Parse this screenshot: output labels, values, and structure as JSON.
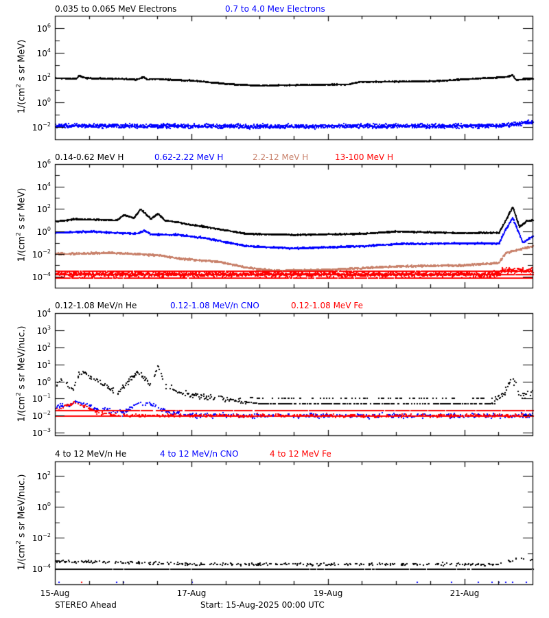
{
  "chart_data": [
    {
      "type": "scatter",
      "panel": 1,
      "title": "",
      "legend": [
        {
          "name": "0.035 to 0.065 MeV Electrons",
          "color": "#000000"
        },
        {
          "name": "0.7 to 4.0 Mev Electrons",
          "color": "#0000ff"
        }
      ],
      "ylabel": "1/(cm^2 s sr MeV)",
      "yscale": "log",
      "ylim_log10": [
        -3,
        7
      ],
      "yticks_labeled": [
        "10^6",
        "10^4",
        "10^2",
        "10^0",
        "10^-2"
      ],
      "xlim_days": [
        0,
        7
      ],
      "series": [
        {
          "name": "0.035 to 0.065 MeV Electrons",
          "color": "#000000",
          "spread": 0.06,
          "x": [
            0,
            0.3,
            0.35,
            0.45,
            1.2,
            1.3,
            1.35,
            1.4,
            2.0,
            2.6,
            3.0,
            4.3,
            4.45,
            5.5,
            6.6,
            6.7,
            6.75,
            7.0
          ],
          "log10_y": [
            1.95,
            1.9,
            2.15,
            1.95,
            1.85,
            2.05,
            1.8,
            1.9,
            1.75,
            1.45,
            1.35,
            1.45,
            1.65,
            1.7,
            2.05,
            2.2,
            1.8,
            1.9
          ]
        },
        {
          "name": "0.7 to 4.0 Mev Electrons",
          "color": "#0000ff",
          "spread": 0.25,
          "x": [
            0,
            3.5,
            6.5,
            7.0
          ],
          "log10_y": [
            -1.9,
            -1.95,
            -1.9,
            -1.6
          ]
        }
      ]
    },
    {
      "type": "scatter",
      "panel": 2,
      "legend": [
        {
          "name": "0.14-0.62 MeV H",
          "color": "#000000"
        },
        {
          "name": "0.62-2.22 MeV H",
          "color": "#0000ff"
        },
        {
          "name": "2.2-12 MeV H",
          "color": "#c8806a"
        },
        {
          "name": "13-100 MeV H",
          "color": "#ff0000"
        }
      ],
      "ylabel": "1/(cm^2 s sr MeV)",
      "yscale": "log",
      "ylim_log10": [
        -5,
        6
      ],
      "yticks_labeled": [
        "10^6",
        "10^4",
        "10^2",
        "10^0",
        "10^-2",
        "10^-4"
      ],
      "xlim_days": [
        0,
        7
      ],
      "series": [
        {
          "name": "0.14-0.62 MeV H",
          "color": "#000000",
          "spread": 0.08,
          "x": [
            0,
            0.3,
            0.9,
            1.0,
            1.15,
            1.25,
            1.4,
            1.5,
            1.6,
            1.8,
            2.2,
            2.8,
            3.5,
            4.5,
            5.0,
            6.0,
            6.5,
            6.6,
            6.7,
            6.8,
            6.9,
            7.0
          ],
          "log10_y": [
            0.9,
            1.1,
            1.0,
            1.5,
            1.2,
            2.0,
            1.1,
            1.6,
            1.0,
            0.8,
            0.4,
            -0.2,
            -0.3,
            -0.2,
            0.0,
            -0.15,
            -0.1,
            1.0,
            2.2,
            0.4,
            0.9,
            1.0
          ]
        },
        {
          "name": "0.62-2.22 MeV H",
          "color": "#0000ff",
          "spread": 0.1,
          "x": [
            0,
            0.5,
            1.2,
            1.3,
            1.4,
            1.8,
            2.2,
            2.8,
            3.5,
            4.5,
            5.0,
            6.5,
            6.6,
            6.7,
            6.85,
            7.0
          ],
          "log10_y": [
            -0.1,
            0.0,
            -0.2,
            0.1,
            -0.25,
            -0.3,
            -0.6,
            -1.3,
            -1.5,
            -1.3,
            -1.1,
            -1.05,
            0.2,
            1.2,
            -1.0,
            -0.4
          ]
        },
        {
          "name": "2.2-12 MeV H",
          "color": "#c8806a",
          "spread": 0.12,
          "x": [
            0,
            0.8,
            1.5,
            1.8,
            2.4,
            2.8,
            3.2,
            4.0,
            5.0,
            6.0,
            6.5,
            6.6,
            6.8,
            7.0
          ],
          "log10_y": [
            -2.0,
            -1.9,
            -2.1,
            -2.4,
            -2.7,
            -3.2,
            -3.5,
            -3.4,
            -3.1,
            -3.0,
            -2.8,
            -1.9,
            -1.6,
            -1.3
          ]
        },
        {
          "name": "13-100 MeV H",
          "color": "#ff0000",
          "spread": 0.35,
          "floor_levels": [
            -3.5,
            -3.8,
            -4.1
          ],
          "x": [
            0,
            6.5,
            6.55,
            7.0
          ],
          "log10_y": [
            -3.8,
            -3.8,
            -3.4,
            -3.5
          ]
        }
      ]
    },
    {
      "type": "scatter",
      "panel": 3,
      "legend": [
        {
          "name": "0.12-1.08 MeV/n He",
          "color": "#000000"
        },
        {
          "name": "0.12-1.08 MeV/n CNO",
          "color": "#0000ff"
        },
        {
          "name": "0.12-1.08 MeV Fe",
          "color": "#ff0000"
        }
      ],
      "ylabel": "1/(cm^2 s sr MeV/nuc.)",
      "yscale": "log",
      "ylim_log10": [
        -3.15,
        4
      ],
      "yticks_labeled": [
        "10^4",
        "10^3",
        "10^2",
        "10^1",
        "10^0",
        "10^-1",
        "10^-2",
        "10^-3"
      ],
      "xlim_days": [
        0,
        7
      ],
      "series": [
        {
          "name": "0.12-1.08 MeV/n He",
          "color": "#000000",
          "spread": 0.25,
          "x": [
            0,
            0.1,
            0.25,
            0.35,
            0.5,
            0.8,
            0.9,
            1.0,
            1.2,
            1.4,
            1.5,
            1.6,
            1.8,
            2.0,
            2.3,
            2.6,
            3.0,
            4.0,
            5.0,
            6.4,
            6.6,
            6.7,
            6.8,
            7.0
          ],
          "log10_y": [
            -0.3,
            0.2,
            -0.5,
            0.6,
            0.3,
            -0.4,
            -0.7,
            -0.3,
            0.6,
            -0.2,
            0.9,
            -0.2,
            -0.6,
            -0.8,
            -0.9,
            -1.1,
            -1.3,
            -1.3,
            -1.3,
            -1.3,
            -0.5,
            0.2,
            -0.9,
            -0.6
          ]
        },
        {
          "name": "0.12-1.08 MeV/n CNO",
          "color": "#0000ff",
          "spread": 0.2,
          "floor_levels": [
            -2.0
          ],
          "x": [
            0,
            0.3,
            0.6,
            1.0,
            1.2,
            1.4,
            1.6,
            2.0,
            7.0
          ],
          "log10_y": [
            -1.5,
            -1.2,
            -1.6,
            -1.8,
            -1.3,
            -1.3,
            -1.7,
            -2.0,
            -2.0
          ]
        },
        {
          "name": "0.12-1.08 MeV Fe",
          "color": "#ff0000",
          "spread": 0.15,
          "floor_levels": [
            -2.0,
            -1.65
          ],
          "x": [
            0,
            0.3,
            0.6,
            1.0,
            7.0
          ],
          "log10_y": [
            -1.7,
            -1.2,
            -1.8,
            -2.0,
            -2.0
          ]
        }
      ]
    },
    {
      "type": "scatter",
      "panel": 4,
      "legend": [
        {
          "name": "4 to 12 MeV/n He",
          "color": "#000000"
        },
        {
          "name": "4 to 12 MeV/n CNO",
          "color": "#0000ff"
        },
        {
          "name": "4 to 12 MeV Fe",
          "color": "#ff0000"
        }
      ],
      "ylabel": "1/(cm^2 s sr MeV/nuc.)",
      "yscale": "log",
      "ylim_log10": [
        -5,
        2.95
      ],
      "yticks_labeled": [
        "10^2",
        "10^0",
        "10^-2",
        "10^-4"
      ],
      "xlim_days": [
        0,
        7
      ],
      "series": [
        {
          "name": "4 to 12 MeV/n He",
          "color": "#000000",
          "spread": 0.12,
          "floor_levels": [
            -4.0
          ],
          "x": [
            0,
            1.2,
            2.0,
            6.5,
            6.8,
            7.0
          ],
          "log10_y": [
            -3.5,
            -3.6,
            -3.7,
            -3.7,
            -3.3,
            -3.4
          ]
        },
        {
          "name": "4 to 12 MeV/n CNO",
          "color": "#0000ff",
          "spread": 0.0,
          "x": [
            0.05,
            0.9,
            1.0,
            2.0,
            5.3,
            5.8,
            6.2,
            6.4,
            6.5,
            6.6,
            6.7,
            6.9
          ],
          "log10_y": [
            -4.85,
            -4.85,
            -4.85,
            -4.85,
            -4.85,
            -4.85,
            -4.85,
            -4.85,
            -4.85,
            -4.85,
            -4.85,
            -4.85
          ]
        },
        {
          "name": "4 to 12 MeV Fe",
          "color": "#ff0000",
          "spread": 0.0,
          "x": [
            0.38
          ],
          "log10_y": [
            -4.85
          ]
        }
      ]
    }
  ],
  "axes": {
    "x_tick_labels": [
      {
        "label": "15-Aug",
        "day": 0
      },
      {
        "label": "17-Aug",
        "day": 2
      },
      {
        "label": "19-Aug",
        "day": 4
      },
      {
        "label": "21-Aug",
        "day": 6
      }
    ],
    "minor_tick_hours": 12
  },
  "panel_labels": {
    "p1": [
      "0.035 to 0.065 MeV Electrons",
      "0.7 to 4.0 Mev Electrons"
    ],
    "p2": [
      "0.14-0.62 MeV H",
      "0.62-2.22 MeV H",
      "2.2-12 MeV H",
      "13-100 MeV H"
    ],
    "p3": [
      "0.12-1.08 MeV/n He",
      "0.12-1.08 MeV/n CNO",
      "0.12-1.08 MeV Fe"
    ],
    "p4": [
      "4 to 12 MeV/n He",
      "4 to 12 MeV/n CNO",
      "4 to 12 MeV Fe"
    ]
  },
  "ylabels": {
    "p1_prefix": "1/(cm",
    "p1_suffix": " s sr MeV)",
    "p3_prefix": "1/(cm",
    "p3_suffix": " s sr MeV/nuc.)",
    "sup": "2"
  },
  "footer": {
    "spacecraft": "STEREO Ahead",
    "start": "Start: 15-Aug-2025 00:00 UTC"
  }
}
